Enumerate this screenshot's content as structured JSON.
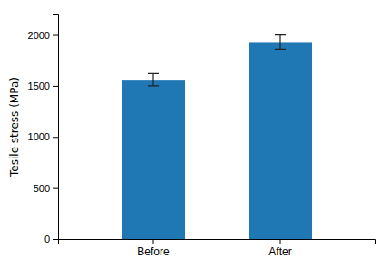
{
  "chart_data": {
    "type": "bar",
    "categories": [
      "Before",
      "After"
    ],
    "values": [
      1560,
      1930
    ],
    "errors": [
      60,
      70
    ],
    "ylabel": "Tesile stress (MPa)",
    "ylim": [
      0,
      2200
    ],
    "yticks": [
      0,
      500,
      1000,
      1500,
      2000
    ]
  }
}
